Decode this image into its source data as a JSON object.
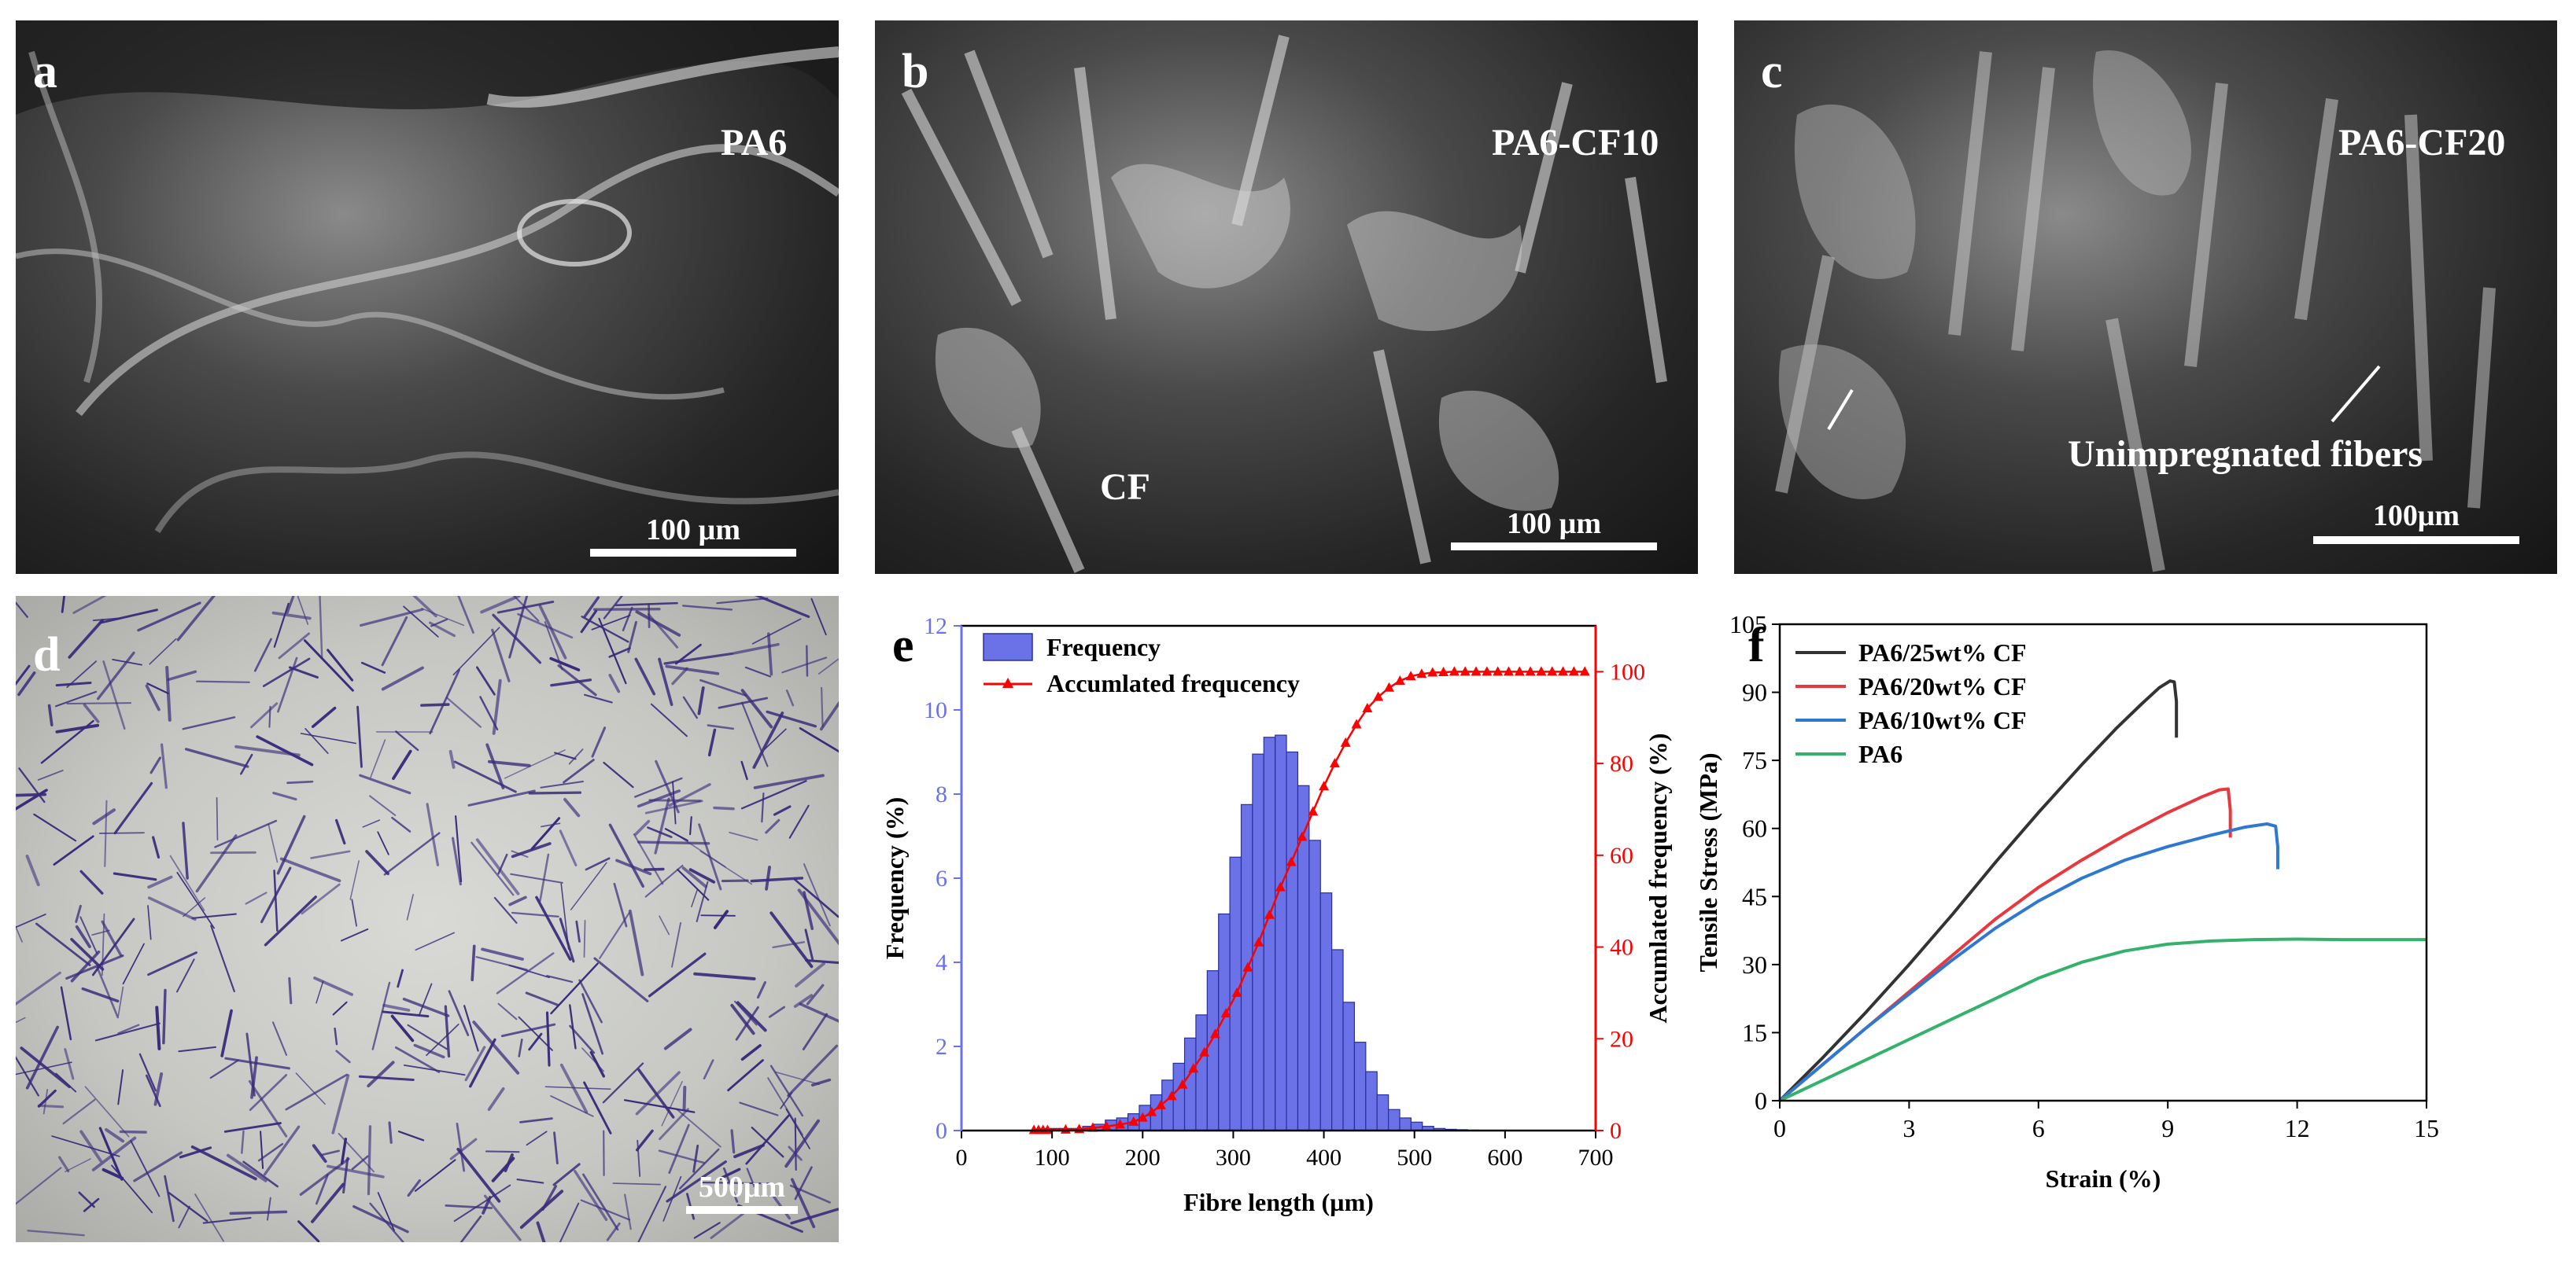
{
  "panels": {
    "a": {
      "letter": "a",
      "sample": "PA6",
      "scale": "100 µm"
    },
    "b": {
      "letter": "b",
      "sample": "PA6-CF10",
      "annotation": "CF",
      "scale": "100 µm"
    },
    "c": {
      "letter": "c",
      "sample": "PA6-CF20",
      "annotation": "Unimpregnated fibers",
      "scale": "100μm"
    },
    "d": {
      "letter": "d",
      "scale": "500μm"
    },
    "e": {
      "letter": "e"
    },
    "f": {
      "letter": "f"
    }
  },
  "colors": {
    "bar_fill": "#6b72e8",
    "accum": "#ff0000",
    "left_axis": "#6b72e8",
    "series_25": "#333333",
    "series_20": "#e8383d",
    "series_10": "#2f78d2",
    "series_pa6": "#34b26b"
  },
  "chart_data": [
    {
      "type": "bar",
      "panel": "e",
      "xlabel": "Fibre length (µm)",
      "ylabel": "Frequency (%)",
      "y2label": "Accumlated frequency (%)",
      "xlim": [
        0,
        700
      ],
      "ylim": [
        0,
        12
      ],
      "y2lim": [
        0,
        110
      ],
      "xticks": [
        "0",
        "100",
        "200",
        "300",
        "400",
        "500",
        "600",
        "700"
      ],
      "yticks": [
        "0",
        "2",
        "4",
        "6",
        "8",
        "10",
        "12"
      ],
      "y2ticks": [
        "0",
        "20",
        "40",
        "60",
        "80",
        "100"
      ],
      "legend": [
        "Frequency",
        "Accumlated frequcency"
      ],
      "legend_position": "top-left",
      "bar_width": 12.5,
      "bins": [
        90,
        102.5,
        115,
        127.5,
        140,
        152.5,
        165,
        177.5,
        190,
        202.5,
        215,
        227.5,
        240,
        252.5,
        265,
        277.5,
        290,
        302.5,
        315,
        327.5,
        340,
        352.5,
        365,
        377.5,
        390,
        402.5,
        415,
        427.5,
        440,
        452.5,
        465,
        477.5,
        490,
        502.5,
        515,
        527.5,
        540,
        552.5,
        565,
        577.5,
        590,
        602.5,
        615,
        627.5,
        640,
        652.5,
        665
      ],
      "frequency": [
        0.05,
        0.05,
        0.05,
        0.05,
        0.1,
        0.15,
        0.25,
        0.3,
        0.4,
        0.6,
        0.85,
        1.2,
        1.6,
        2.2,
        2.75,
        3.8,
        5.15,
        6.5,
        7.75,
        8.95,
        9.35,
        9.4,
        9.0,
        8.2,
        6.9,
        5.65,
        4.3,
        3.05,
        2.1,
        1.4,
        0.85,
        0.5,
        0.3,
        0.2,
        0.1,
        0.05,
        0.03,
        0.02,
        0.01,
        0.0,
        0.0,
        0.0,
        0.0,
        0.0,
        0.0,
        0.0,
        0.0
      ],
      "accumulated_x": [
        80,
        85,
        90,
        95,
        115,
        130,
        145,
        160,
        175,
        190,
        200,
        210,
        220,
        232,
        244,
        256,
        268,
        280,
        292,
        304,
        316,
        328,
        340,
        352,
        364,
        376,
        388,
        400,
        412,
        424,
        436,
        448,
        460,
        472,
        484,
        496,
        508,
        520,
        532,
        544,
        556,
        568,
        580,
        592,
        604,
        616,
        628,
        640,
        652,
        664,
        676,
        688
      ],
      "accumulated": [
        0.1,
        0.1,
        0.1,
        0.1,
        0.2,
        0.3,
        0.6,
        0.9,
        1.3,
        1.9,
        2.8,
        4.0,
        5.5,
        7.5,
        10.0,
        13.5,
        17.0,
        21.0,
        25.5,
        30.0,
        35.5,
        41.0,
        47.0,
        53.0,
        58.5,
        64.0,
        69.5,
        75.0,
        80.0,
        84.5,
        88.5,
        92.0,
        94.5,
        96.5,
        98.0,
        99.0,
        99.5,
        99.8,
        99.9,
        100,
        100,
        100,
        100,
        100,
        100,
        100,
        100,
        100,
        100,
        100,
        100,
        100
      ]
    },
    {
      "type": "line",
      "panel": "f",
      "xlabel": "Strain (%)",
      "ylabel": "Tensile Stress (MPa)",
      "xlim": [
        0,
        15
      ],
      "ylim": [
        0,
        105
      ],
      "xticks": [
        "0",
        "3",
        "6",
        "9",
        "12",
        "15"
      ],
      "yticks": [
        "0",
        "15",
        "30",
        "45",
        "60",
        "75",
        "90",
        "105"
      ],
      "legend_position": "top-left",
      "series": [
        {
          "name": "PA6/25wt% CF",
          "color": "#333333",
          "x": [
            0,
            1,
            2,
            3,
            4,
            5,
            6,
            7,
            7.8,
            8.4,
            8.8,
            9.05,
            9.15,
            9.2,
            9.2
          ],
          "y": [
            0,
            9.5,
            19.5,
            30,
            41,
            52.5,
            63.5,
            74,
            82,
            87.5,
            91,
            92.5,
            92.3,
            88,
            80
          ]
        },
        {
          "name": "PA6/20wt% CF",
          "color": "#e8383d",
          "x": [
            0,
            1,
            2,
            3,
            4,
            5,
            6,
            7,
            8,
            9,
            9.8,
            10.2,
            10.4,
            10.45,
            10.45
          ],
          "y": [
            0,
            8,
            16,
            24,
            32,
            40,
            47,
            53,
            58.5,
            63.5,
            67,
            68.5,
            68.7,
            64,
            58
          ]
        },
        {
          "name": "PA6/10wt% CF",
          "color": "#2f78d2",
          "x": [
            0,
            1,
            2,
            3,
            4,
            5,
            6,
            7,
            8,
            9,
            10,
            10.8,
            11.3,
            11.5,
            11.55,
            11.55
          ],
          "y": [
            0,
            8,
            16,
            23.5,
            31,
            38,
            44,
            49,
            53,
            56,
            58.5,
            60.3,
            61,
            60.5,
            56,
            51
          ]
        },
        {
          "name": "PA6",
          "color": "#34b26b",
          "x": [
            0,
            1,
            2,
            3,
            4,
            5,
            6,
            7,
            8,
            9,
            10,
            11,
            12,
            13,
            14,
            15
          ],
          "y": [
            0,
            4.5,
            9,
            13.5,
            18,
            22.5,
            27,
            30.5,
            33,
            34.5,
            35.2,
            35.5,
            35.6,
            35.5,
            35.5,
            35.5
          ]
        }
      ]
    }
  ]
}
